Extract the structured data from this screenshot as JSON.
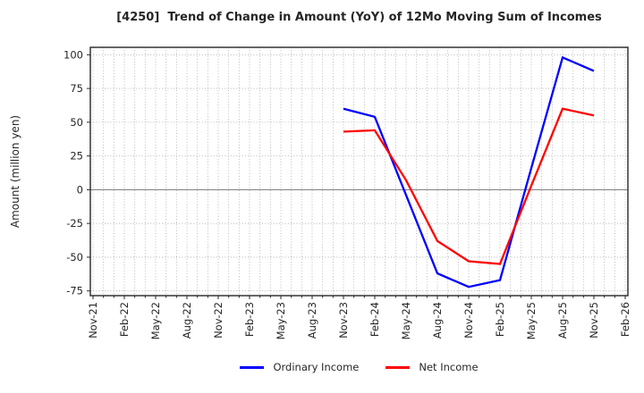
{
  "chart_data": {
    "type": "line",
    "title": "[4250]  Trend of Change in Amount (YoY) of 12Mo Moving Sum of Incomes",
    "ylabel": "Amount (million yen)",
    "xlabel": "",
    "x_ticks": [
      "Nov-21",
      "Feb-22",
      "May-22",
      "Aug-22",
      "Nov-22",
      "Feb-23",
      "May-23",
      "Aug-23",
      "Nov-23",
      "Feb-24",
      "May-24",
      "Aug-24",
      "Nov-24",
      "Feb-25",
      "May-25",
      "Aug-25",
      "Nov-25",
      "Feb-26"
    ],
    "months_per_tick": 3,
    "minor_vertical_gridlines": "monthly",
    "y_ticks": [
      100,
      75,
      50,
      25,
      0,
      -25,
      -50,
      -75
    ],
    "ylim": [
      -78.5,
      105.5
    ],
    "grid": true,
    "grid_style": "dotted",
    "zero_line": true,
    "legend_position": "bottom-center",
    "series": [
      {
        "name": "Ordinary Income",
        "color": "#0000ff",
        "x": [
          "Nov-23",
          "Feb-24",
          "May-24",
          "Aug-24",
          "Nov-24",
          "Feb-25",
          "May-25",
          "Aug-25",
          "Nov-25"
        ],
        "values": [
          60,
          54,
          -4,
          -62,
          -72,
          -67,
          16,
          98,
          88
        ]
      },
      {
        "name": "Net Income",
        "color": "#ff0000",
        "x": [
          "Nov-23",
          "Feb-24",
          "May-24",
          "Aug-24",
          "Nov-24",
          "Feb-25",
          "May-25",
          "Aug-25",
          "Nov-25"
        ],
        "values": [
          43,
          44,
          7,
          -38,
          -53,
          -55,
          3,
          60,
          55
        ]
      }
    ],
    "colors": {
      "axis": "#262626",
      "grid": "#aaaaaa",
      "zero_line": "#888888",
      "text": "#262626",
      "background": "#ffffff"
    }
  }
}
